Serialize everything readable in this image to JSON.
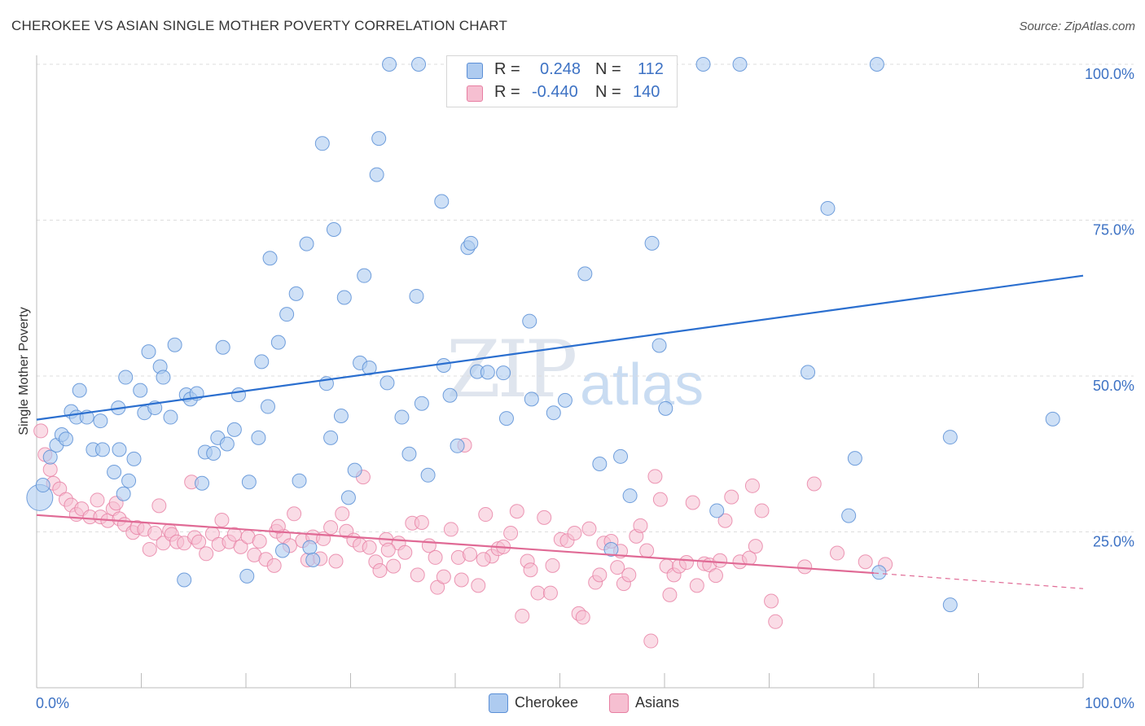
{
  "title": "CHEROKEE VS ASIAN SINGLE MOTHER POVERTY CORRELATION CHART",
  "source": "Source: ZipAtlas.com",
  "watermark": {
    "zip": "ZIP",
    "atlas": "atlas"
  },
  "colors": {
    "cherokee_fill": "#aecbf0",
    "cherokee_stroke": "#5b8fd6",
    "cherokee_line": "#2b6fcf",
    "asians_fill": "#f6bfd1",
    "asians_stroke": "#e77ea2",
    "asians_line": "#e06a95",
    "tick_text": "#3d72c4"
  },
  "stats": {
    "rows": [
      {
        "r_label": "R = ",
        "r_value": "0.248",
        "n_label": "N = ",
        "n_value": "112"
      },
      {
        "r_label": "R = ",
        "r_value": "-0.440",
        "n_label": "N = ",
        "n_value": "140"
      }
    ]
  },
  "legend": {
    "items": [
      "Cherokee",
      "Asians"
    ]
  },
  "chart_data": {
    "type": "scatter",
    "title": "CHEROKEE VS ASIAN SINGLE MOTHER POVERTY CORRELATION CHART",
    "xlabel": "",
    "ylabel": "Single Mother Poverty",
    "xlim": [
      0,
      100
    ],
    "ylim": [
      0,
      100
    ],
    "x_tick_labels": [
      "0.0%",
      "100.0%"
    ],
    "y_tick_labels": [
      "25.0%",
      "50.0%",
      "75.0%",
      "100.0%"
    ],
    "y_ticks": [
      25,
      50,
      75,
      100
    ],
    "grid": "horizontal dashed",
    "legend_position": "bottom-center",
    "series": [
      {
        "name": "Cherokee",
        "r": 0.248,
        "n": 112,
        "trend": {
          "x0": 0,
          "y0": 43.0,
          "x1": 100,
          "y1": 66.1
        },
        "points": [
          [
            0.3,
            30.5
          ],
          [
            0.6,
            32.5
          ],
          [
            1.3,
            37
          ],
          [
            1.9,
            38.9
          ],
          [
            2.4,
            40.6
          ],
          [
            2.8,
            39.9
          ],
          [
            3.3,
            44.3
          ],
          [
            3.8,
            43.4
          ],
          [
            4.1,
            47.7
          ],
          [
            4.8,
            43.4
          ],
          [
            5.4,
            38.2
          ],
          [
            6.1,
            42.8
          ],
          [
            6.3,
            38.2
          ],
          [
            7.4,
            34.6
          ],
          [
            7.8,
            44.9
          ],
          [
            7.9,
            38.2
          ],
          [
            8.3,
            31.1
          ],
          [
            8.5,
            49.8
          ],
          [
            8.8,
            33.2
          ],
          [
            9.3,
            36.7
          ],
          [
            9.9,
            47.7
          ],
          [
            10.3,
            44.1
          ],
          [
            10.7,
            53.9
          ],
          [
            11.3,
            44.9
          ],
          [
            11.8,
            51.5
          ],
          [
            12.1,
            49.8
          ],
          [
            12.8,
            43.4
          ],
          [
            13.2,
            55
          ],
          [
            14.1,
            17.3
          ],
          [
            14.3,
            47
          ],
          [
            14.7,
            46.3
          ],
          [
            15.3,
            47.2
          ],
          [
            15.8,
            32.8
          ],
          [
            16.1,
            37.8
          ],
          [
            16.9,
            37.6
          ],
          [
            17.3,
            40.1
          ],
          [
            17.8,
            54.6
          ],
          [
            18.2,
            39.1
          ],
          [
            18.9,
            41.4
          ],
          [
            19.3,
            47
          ],
          [
            20.1,
            17.9
          ],
          [
            20.3,
            33
          ],
          [
            21.2,
            40.1
          ],
          [
            21.5,
            52.3
          ],
          [
            22.1,
            45.1
          ],
          [
            22.3,
            68.9
          ],
          [
            23.1,
            55.4
          ],
          [
            23.5,
            22
          ],
          [
            23.9,
            59.9
          ],
          [
            24.8,
            63.2
          ],
          [
            25.1,
            33.2
          ],
          [
            25.8,
            71.2
          ],
          [
            26.1,
            22.5
          ],
          [
            26.4,
            20.5
          ],
          [
            27.3,
            87.3
          ],
          [
            27.7,
            48.8
          ],
          [
            28.1,
            40.1
          ],
          [
            28.4,
            73.5
          ],
          [
            29.1,
            43.6
          ],
          [
            29.4,
            62.6
          ],
          [
            29.8,
            30.5
          ],
          [
            30.4,
            34.9
          ],
          [
            30.9,
            52.1
          ],
          [
            31.3,
            66.1
          ],
          [
            31.8,
            51.3
          ],
          [
            32.5,
            82.3
          ],
          [
            32.7,
            88.1
          ],
          [
            33.5,
            48.9
          ],
          [
            33.7,
            100
          ],
          [
            34.9,
            43.4
          ],
          [
            35.6,
            37.5
          ],
          [
            36.3,
            62.8
          ],
          [
            36.5,
            100
          ],
          [
            36.8,
            45.6
          ],
          [
            37.4,
            34.1
          ],
          [
            38.7,
            78
          ],
          [
            38.9,
            51.7
          ],
          [
            39.5,
            46.9
          ],
          [
            40.2,
            38.8
          ],
          [
            41.2,
            70.6
          ],
          [
            41.5,
            71.3
          ],
          [
            42.1,
            50.7
          ],
          [
            43.1,
            50.6
          ],
          [
            44.6,
            50.5
          ],
          [
            44.9,
            43.2
          ],
          [
            47.3,
            46.3
          ],
          [
            47.1,
            58.8
          ],
          [
            49.4,
            44.1
          ],
          [
            50.5,
            46.1
          ],
          [
            52.4,
            66.4
          ],
          [
            53.8,
            35.9
          ],
          [
            54.9,
            22.2
          ],
          [
            55.8,
            37.1
          ],
          [
            56.7,
            30.8
          ],
          [
            58.1,
            100
          ],
          [
            58.8,
            71.3
          ],
          [
            59.5,
            54.9
          ],
          [
            60.1,
            44.8
          ],
          [
            63.7,
            100
          ],
          [
            65,
            28.4
          ],
          [
            67.2,
            100
          ],
          [
            73.7,
            50.6
          ],
          [
            75.6,
            76.9
          ],
          [
            77.6,
            27.6
          ],
          [
            78.2,
            36.8
          ],
          [
            80.3,
            100
          ],
          [
            80.5,
            18.5
          ],
          [
            87.3,
            13.3
          ],
          [
            87.3,
            40.2
          ],
          [
            97.1,
            43.1
          ]
        ]
      },
      {
        "name": "Asians",
        "r": -0.44,
        "n": 140,
        "trend": {
          "x0": 0,
          "y0": 27.7,
          "x1": 80,
          "y1": 18.4,
          "dashed_to_x": 100,
          "dashed_to_y": 15.9
        },
        "points": [
          [
            0.4,
            41.2
          ],
          [
            0.8,
            37.4
          ],
          [
            1.3,
            35
          ],
          [
            1.6,
            32.8
          ],
          [
            2.2,
            31.9
          ],
          [
            2.8,
            30.2
          ],
          [
            3.3,
            29.3
          ],
          [
            3.8,
            27.8
          ],
          [
            4.3,
            28.7
          ],
          [
            5.1,
            27.4
          ],
          [
            5.8,
            30.1
          ],
          [
            6.1,
            27.4
          ],
          [
            6.8,
            26.8
          ],
          [
            7.3,
            28.7
          ],
          [
            7.6,
            29.6
          ],
          [
            7.9,
            27.1
          ],
          [
            8.4,
            26.2
          ],
          [
            9.2,
            24.9
          ],
          [
            9.6,
            25.7
          ],
          [
            10.3,
            25.4
          ],
          [
            10.8,
            22.2
          ],
          [
            11.3,
            24.8
          ],
          [
            11.7,
            29.2
          ],
          [
            12.1,
            23.2
          ],
          [
            12.7,
            25.2
          ],
          [
            12.9,
            24.6
          ],
          [
            13.4,
            23.4
          ],
          [
            14.1,
            23.2
          ],
          [
            14.8,
            33
          ],
          [
            15.1,
            24.1
          ],
          [
            15.5,
            23.4
          ],
          [
            16.2,
            21.5
          ],
          [
            16.8,
            24.7
          ],
          [
            17.4,
            23
          ],
          [
            17.7,
            26.9
          ],
          [
            18.4,
            23.4
          ],
          [
            18.9,
            24.6
          ],
          [
            19.5,
            22.6
          ],
          [
            20.2,
            24.2
          ],
          [
            20.8,
            21.3
          ],
          [
            21.3,
            23.5
          ],
          [
            21.9,
            20.6
          ],
          [
            22.7,
            19.6
          ],
          [
            22.9,
            25.1
          ],
          [
            23.6,
            24.3
          ],
          [
            24.2,
            22.8
          ],
          [
            24.6,
            27.9
          ],
          [
            25.4,
            23.6
          ],
          [
            25.9,
            20.5
          ],
          [
            26.4,
            24.2
          ],
          [
            27.1,
            20.7
          ],
          [
            27.4,
            23.9
          ],
          [
            28.1,
            25.7
          ],
          [
            28.6,
            20.3
          ],
          [
            29.2,
            27.9
          ],
          [
            29.6,
            25.1
          ],
          [
            30.3,
            23.7
          ],
          [
            30.9,
            22.9
          ],
          [
            31.2,
            33.8
          ],
          [
            31.8,
            22.5
          ],
          [
            32.4,
            20.2
          ],
          [
            32.8,
            18.8
          ],
          [
            33.4,
            23.8
          ],
          [
            34.1,
            19.5
          ],
          [
            34.6,
            23.2
          ],
          [
            35.2,
            21.7
          ],
          [
            35.9,
            26.4
          ],
          [
            36.4,
            18.1
          ],
          [
            36.8,
            26.5
          ],
          [
            37.5,
            22.8
          ],
          [
            38.1,
            20.9
          ],
          [
            38.3,
            16.1
          ],
          [
            38.9,
            17.8
          ],
          [
            39.6,
            25.4
          ],
          [
            40.3,
            20.9
          ],
          [
            40.6,
            17.3
          ],
          [
            40.9,
            38.9
          ],
          [
            41.4,
            21.4
          ],
          [
            42.2,
            16.4
          ],
          [
            42.9,
            27.8
          ],
          [
            43.5,
            21.1
          ],
          [
            44.1,
            22.3
          ],
          [
            44.6,
            22.6
          ],
          [
            45.3,
            24.8
          ],
          [
            45.9,
            28.3
          ],
          [
            46.4,
            11.5
          ],
          [
            46.9,
            20.3
          ],
          [
            47.2,
            18.9
          ],
          [
            47.9,
            15.2
          ],
          [
            48.5,
            27.3
          ],
          [
            49.1,
            15.2
          ],
          [
            49.3,
            19.6
          ],
          [
            50.1,
            23.8
          ],
          [
            50.7,
            23.6
          ],
          [
            51.4,
            24.8
          ],
          [
            51.8,
            11.9
          ],
          [
            52.2,
            11.3
          ],
          [
            52.8,
            25.5
          ],
          [
            53.4,
            16.9
          ],
          [
            53.8,
            18.1
          ],
          [
            54.2,
            23.2
          ],
          [
            54.9,
            23.5
          ],
          [
            55.5,
            19.3
          ],
          [
            56.1,
            16.7
          ],
          [
            56.6,
            18.1
          ],
          [
            57.3,
            24.3
          ],
          [
            57.7,
            26
          ],
          [
            58.3,
            22
          ],
          [
            58.7,
            7.5
          ],
          [
            59.1,
            33.9
          ],
          [
            59.6,
            30.2
          ],
          [
            60.2,
            19.5
          ],
          [
            60.5,
            14.9
          ],
          [
            60.9,
            18.1
          ],
          [
            61.4,
            19.5
          ],
          [
            62.1,
            20.1
          ],
          [
            62.7,
            29.7
          ],
          [
            63.1,
            16.4
          ],
          [
            63.8,
            19.9
          ],
          [
            64.3,
            19.7
          ],
          [
            64.9,
            18
          ],
          [
            65.3,
            20.4
          ],
          [
            65.8,
            26.8
          ],
          [
            66.4,
            30.6
          ],
          [
            67.2,
            20.2
          ],
          [
            68.1,
            20.8
          ],
          [
            68.4,
            32.4
          ],
          [
            68.7,
            22.7
          ],
          [
            69.3,
            28.4
          ],
          [
            70.2,
            13.9
          ],
          [
            70.6,
            10.6
          ],
          [
            73.4,
            19.4
          ],
          [
            76.5,
            21.6
          ],
          [
            79.2,
            20.2
          ],
          [
            81.1,
            19.8
          ],
          [
            74.3,
            32.7
          ],
          [
            55.8,
            21.9
          ],
          [
            42.7,
            20.6
          ],
          [
            33.6,
            22.1
          ],
          [
            23.1,
            25.9
          ]
        ]
      }
    ]
  }
}
